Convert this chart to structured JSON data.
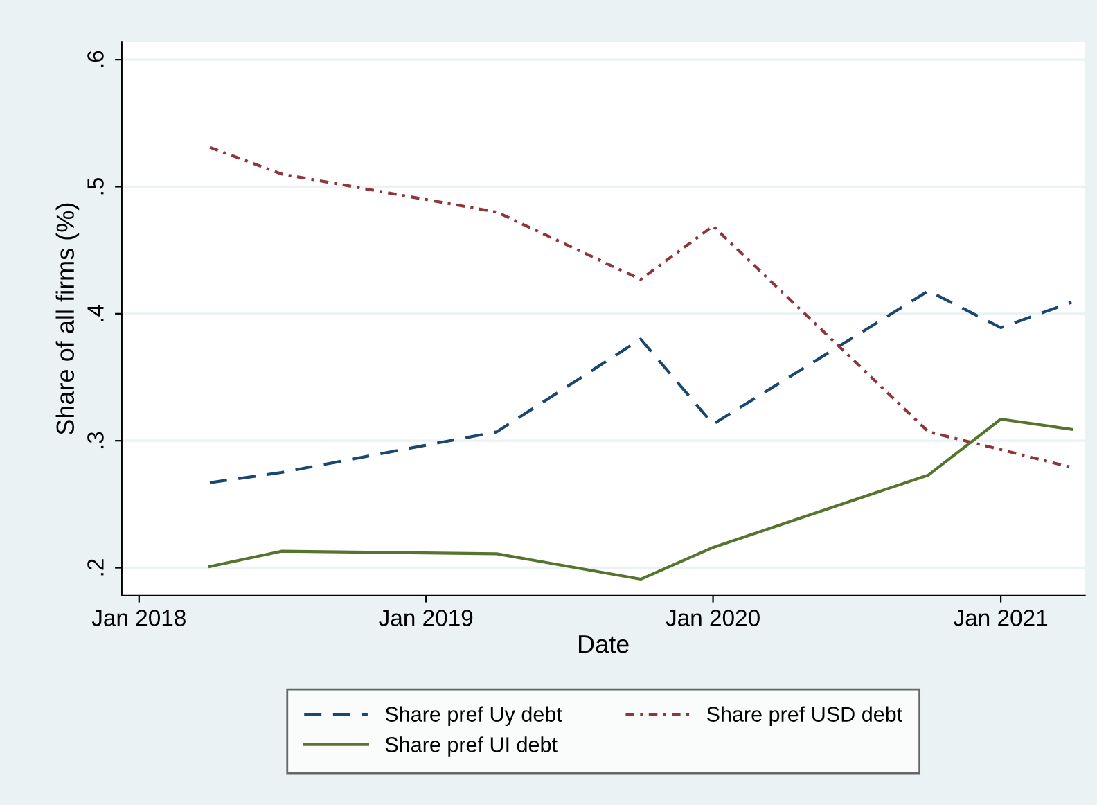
{
  "chart_data": {
    "type": "line",
    "xlabel": "Date",
    "ylabel": "Share of all firms (%)",
    "x": [
      "2018-04",
      "2018-07",
      "2019-04",
      "2019-10",
      "2020-01",
      "2020-10",
      "2021-01",
      "2021-04"
    ],
    "series": [
      {
        "name": "Share pref Uy debt",
        "color": "#1a476f",
        "line_style": "dashed",
        "values": [
          0.267,
          0.275,
          0.307,
          0.38,
          0.313,
          0.418,
          0.389,
          0.409
        ]
      },
      {
        "name": "Share pref USD debt",
        "color": "#90353b",
        "line_style": "dashdot",
        "values": [
          0.531,
          0.51,
          0.48,
          0.427,
          0.469,
          0.307,
          0.293,
          0.279
        ]
      },
      {
        "name": "Share pref UI debt",
        "color": "#55752f",
        "line_style": "solid",
        "values": [
          0.201,
          0.213,
          0.211,
          0.191,
          0.216,
          0.273,
          0.317,
          0.309
        ]
      }
    ],
    "xlim": [
      "2017-12-10",
      "2021-04-18"
    ],
    "xticks": [
      {
        "value": "2018-01",
        "label": "Jan 2018"
      },
      {
        "value": "2019-01",
        "label": "Jan 2019"
      },
      {
        "value": "2020-01",
        "label": "Jan 2020"
      },
      {
        "value": "2021-01",
        "label": "Jan 2021"
      }
    ],
    "ylim": [
      0.178,
      0.614
    ],
    "yticks": [
      {
        "value": 0.2,
        "label": ".2"
      },
      {
        "value": 0.3,
        "label": ".3"
      },
      {
        "value": 0.4,
        "label": ".4"
      },
      {
        "value": 0.5,
        "label": ".5"
      },
      {
        "value": 0.6,
        "label": ".6"
      }
    ],
    "grid": "y",
    "legend": "bottom",
    "marker": "none"
  }
}
